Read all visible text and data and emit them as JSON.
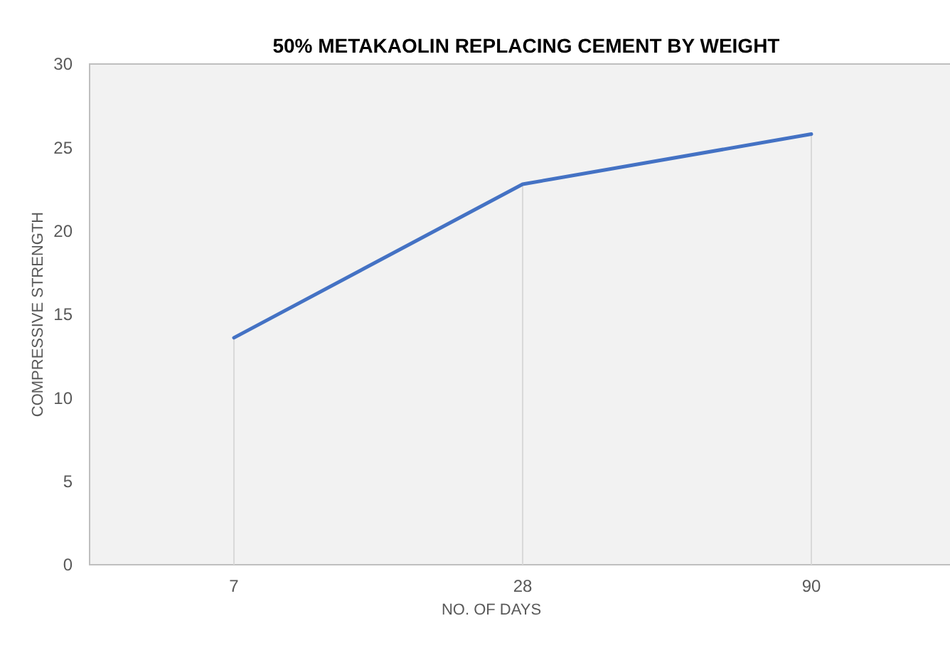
{
  "chart_data": {
    "type": "line",
    "title": "50% METAKAOLIN REPLACING CEMENT BY WEIGHT",
    "xlabel": "NO. OF DAYS",
    "ylabel": "COMPRESSIVE STRENGTH",
    "categories": [
      "7",
      "28",
      "90"
    ],
    "series": [
      {
        "color": "#4472c4",
        "values": [
          13.6,
          22.8,
          25.8
        ]
      }
    ],
    "ylim": [
      0,
      30
    ],
    "yticks": [
      0,
      5,
      10,
      15,
      20,
      25,
      30
    ],
    "marker": "none",
    "line_style": "solid"
  }
}
